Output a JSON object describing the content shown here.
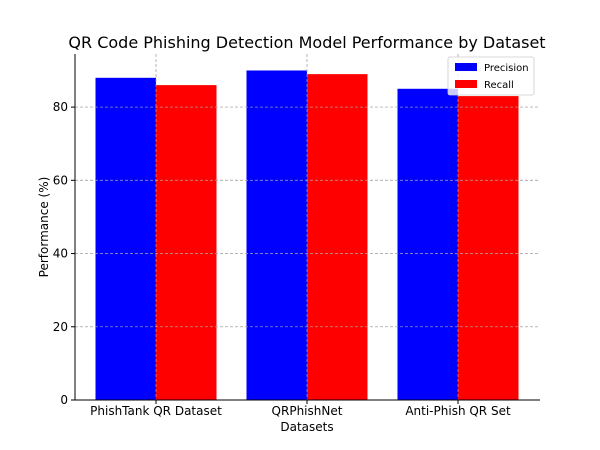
{
  "chart_data": {
    "type": "bar",
    "title": "QR Code Phishing Detection Model Performance by Dataset",
    "xlabel": "Datasets",
    "ylabel": "Performance (%)",
    "categories": [
      "PhishTank QR Dataset",
      "QRPhishNet",
      "Anti-Phish QR Set"
    ],
    "series": [
      {
        "name": "Precision",
        "values": [
          88,
          90,
          85
        ],
        "color": "#0000ff"
      },
      {
        "name": "Recall",
        "values": [
          86,
          89,
          83
        ],
        "color": "#ff0000"
      }
    ],
    "ylim": [
      0,
      94.5
    ],
    "yticks": [
      0,
      20,
      40,
      60,
      80
    ],
    "grid": true,
    "legend_position": "top-right"
  }
}
